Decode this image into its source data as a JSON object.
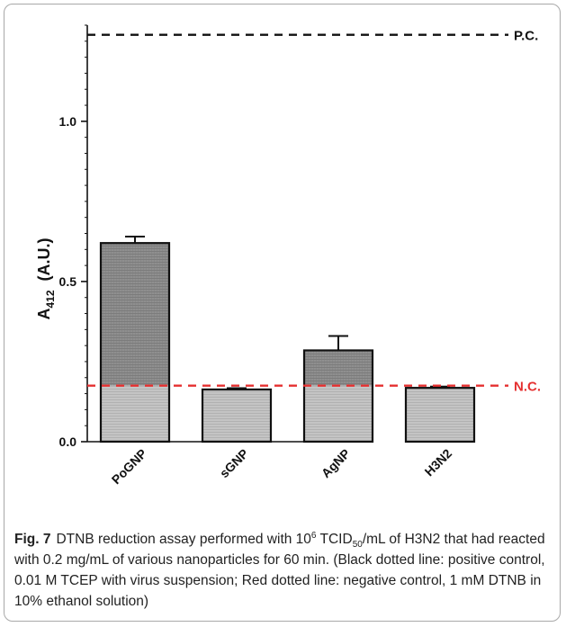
{
  "chart_data": {
    "type": "bar",
    "categories": [
      "PoGNP",
      "sGNP",
      "AgNP",
      "H3N2"
    ],
    "values": [
      0.62,
      0.163,
      0.285,
      0.168
    ],
    "errors": [
      0.02,
      0.004,
      0.045,
      0.004
    ],
    "ylabel_main": "A",
    "ylabel_sub": "412",
    "ylabel_rest": "  (A.U.)",
    "ylim": [
      0,
      1.3
    ],
    "yticks": [
      0.0,
      0.5,
      1.0
    ],
    "ytick_labels": [
      "0.0",
      "0.5",
      "1.0"
    ],
    "reference_lines": [
      {
        "label": "P.C.",
        "value": 1.27,
        "color": "#111111"
      },
      {
        "label": "N.C.",
        "value": 0.175,
        "color": "#e53030"
      }
    ],
    "bar_colors": {
      "fill_above": "#8f8f8f",
      "fill_below": "#bdbdbd",
      "edge": "#111111"
    }
  },
  "caption": {
    "label": "Fig. 7",
    "text_1": "DTNB reduction assay performed with 10",
    "sup_1": "6",
    "text_2": " TCID",
    "sub_1": "50",
    "text_3": "/mL of H3N2 that had reacted with 0.2 mg/mL of various nanoparticles for 60 min. (Black dotted line: positive control, 0.01 M TCEP with virus suspension; Red dotted line: negative control, 1 mM DTNB in 10% ethanol solution)"
  }
}
